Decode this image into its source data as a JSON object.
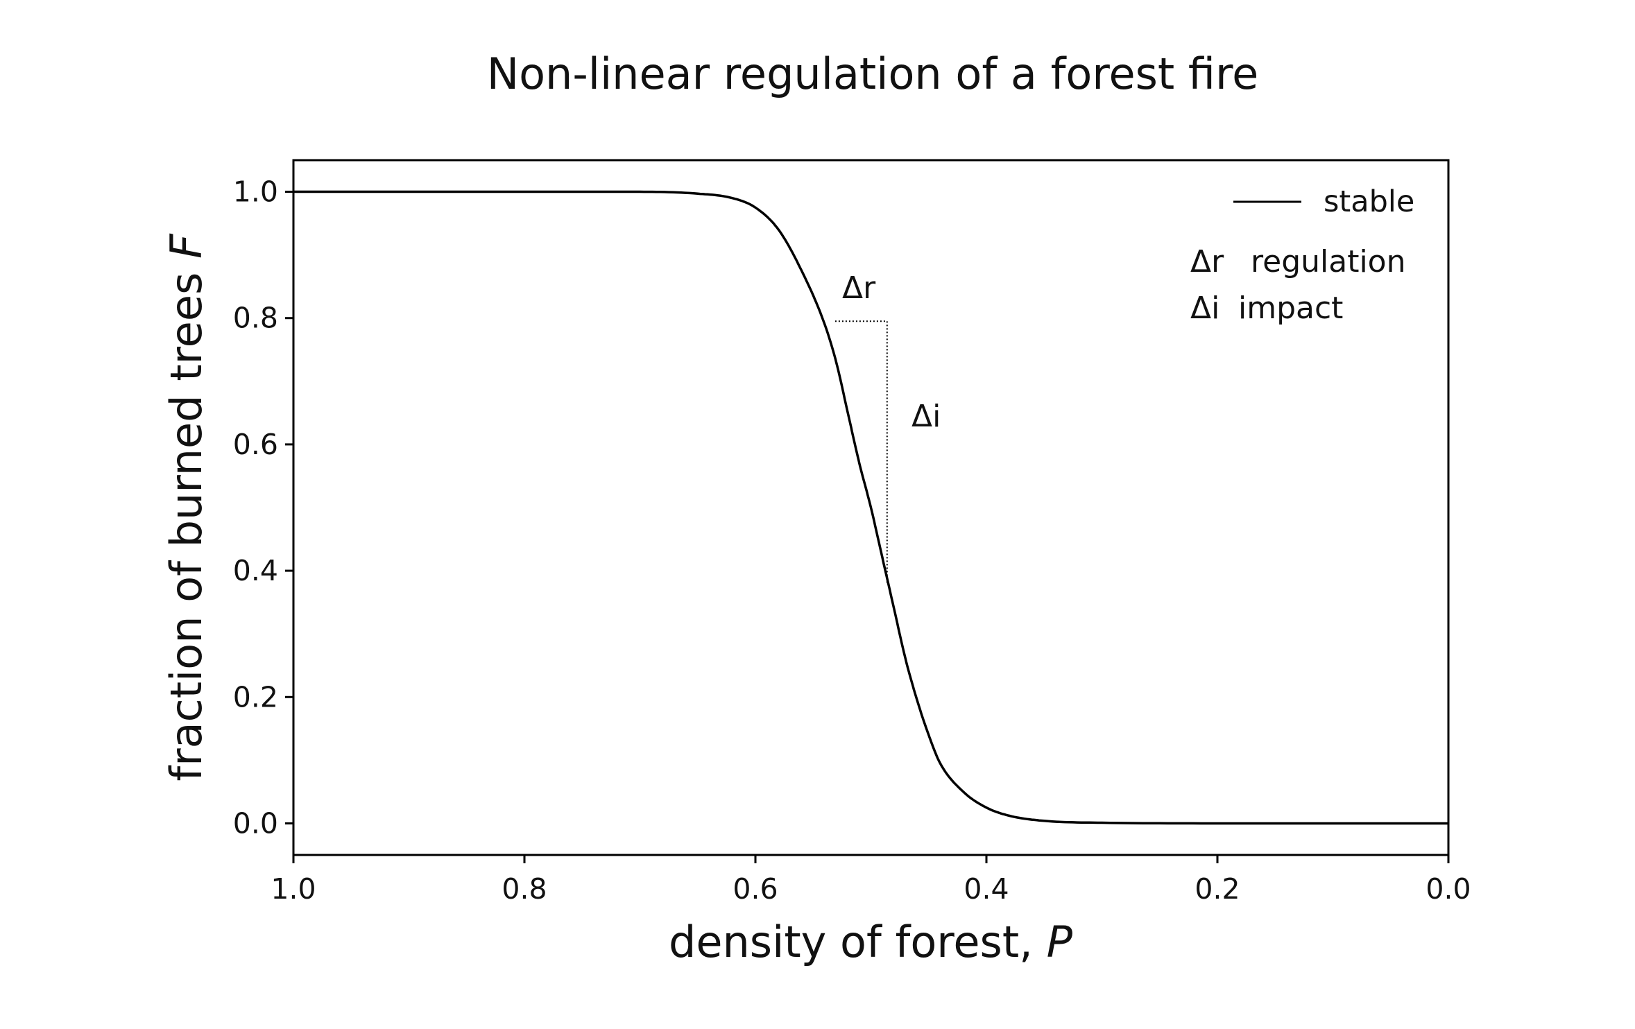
{
  "chart_data": {
    "type": "line",
    "title": "Non-linear regulation of a forest fire",
    "xlabel_text": "density of forest, ",
    "xlabel_var": "P",
    "ylabel_text": "fraction of burned trees ",
    "ylabel_var": "F",
    "xlim": [
      1.0,
      0.0
    ],
    "ylim": [
      -0.05,
      1.05
    ],
    "x_ticks": [
      1.0,
      0.8,
      0.6,
      0.4,
      0.2,
      0.0
    ],
    "x_tick_labels": [
      "1.0",
      "0.8",
      "0.6",
      "0.4",
      "0.2",
      "0.0"
    ],
    "y_ticks": [
      0.0,
      0.2,
      0.4,
      0.6,
      0.8,
      1.0
    ],
    "y_tick_labels": [
      "0.0",
      "0.2",
      "0.4",
      "0.6",
      "0.8",
      "1.0"
    ],
    "series": [
      {
        "name": "stable",
        "color": "#000000",
        "x": [
          1.0,
          0.9,
          0.8,
          0.7,
          0.65,
          0.62,
          0.6,
          0.58,
          0.56,
          0.54,
          0.53,
          0.52,
          0.51,
          0.5,
          0.49,
          0.48,
          0.47,
          0.46,
          0.45,
          0.44,
          0.42,
          0.4,
          0.38,
          0.35,
          0.3,
          0.2,
          0.1,
          0.0
        ],
        "y": [
          1.0,
          1.0,
          1.0,
          1.0,
          0.997,
          0.99,
          0.975,
          0.94,
          0.875,
          0.79,
          0.73,
          0.65,
          0.57,
          0.5,
          0.42,
          0.34,
          0.26,
          0.195,
          0.14,
          0.095,
          0.05,
          0.025,
          0.012,
          0.004,
          0.001,
          0.0,
          0.0,
          0.0
        ]
      }
    ],
    "annotations": {
      "bracket": {
        "x_left": 0.531,
        "x_right": 0.486,
        "y_top": 0.795,
        "y_bottom": 0.38,
        "style": "dotted"
      },
      "dr_label": "Δr",
      "di_label": "Δi",
      "key": [
        {
          "symbol": "Δr",
          "text": "regulation"
        },
        {
          "symbol": "Δi",
          "text": "impact"
        }
      ]
    },
    "legend": {
      "position": "top-right",
      "entries": [
        "stable"
      ]
    },
    "grid": false
  }
}
